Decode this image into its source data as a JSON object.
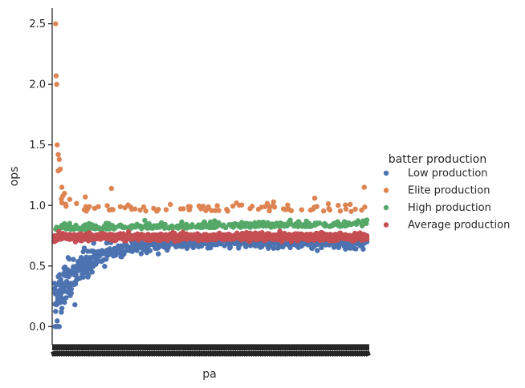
{
  "chart_data": {
    "type": "scatter",
    "title": "",
    "xlabel": "pa",
    "ylabel": "ops",
    "ylim": [
      -0.15,
      2.63
    ],
    "yticks": [
      "0.0",
      "0.5",
      "1.0",
      "1.5",
      "2.0",
      "2.5"
    ],
    "grid": false,
    "x_ticks_note": "dense overlapping categorical tick labels (unreadable)",
    "legend": {
      "title": "batter production",
      "placement": "right",
      "entries": [
        "Low production",
        "Elite production",
        "High production",
        "Average production"
      ]
    },
    "x_range": [
      1,
      600
    ],
    "series": [
      {
        "name": "Low production",
        "color": "#4c72b0",
        "trend": {
          "y_at_x1": 0.2,
          "y_at_x600": 0.7,
          "spread": 0.06
        },
        "points": [
          [
            2,
            0.0
          ],
          [
            4,
            0.0
          ],
          [
            6,
            0.0
          ],
          [
            8,
            0.0
          ],
          [
            10,
            0.0
          ],
          [
            15,
            0.15
          ],
          [
            20,
            0.2
          ],
          [
            30,
            0.3
          ],
          [
            40,
            0.18
          ],
          [
            50,
            0.4
          ],
          [
            60,
            0.5
          ],
          [
            80,
            0.55
          ],
          [
            100,
            0.6
          ],
          [
            150,
            0.62
          ],
          [
            200,
            0.6
          ],
          [
            300,
            0.65
          ],
          [
            400,
            0.68
          ],
          [
            500,
            0.67
          ],
          [
            600,
            0.7
          ]
        ]
      },
      {
        "name": "Elite production",
        "color": "#dd8452",
        "trend": {
          "y_at_x1": 1.2,
          "y_at_x600": 0.95,
          "spread": 0.08
        },
        "points": [
          [
            3,
            2.5
          ],
          [
            4,
            2.07
          ],
          [
            5,
            2.0
          ],
          [
            6,
            1.5
          ],
          [
            8,
            1.42
          ],
          [
            10,
            1.38
          ],
          [
            12,
            1.3
          ],
          [
            15,
            1.15
          ],
          [
            20,
            1.1
          ],
          [
            30,
            1.05
          ],
          [
            60,
            1.07
          ],
          [
            110,
            1.14
          ],
          [
            260,
            0.98
          ],
          [
            350,
            1.02
          ],
          [
            420,
            1.0
          ],
          [
            500,
            1.06
          ],
          [
            560,
            0.97
          ],
          [
            595,
            1.15
          ]
        ]
      },
      {
        "name": "High production",
        "color": "#55a868",
        "trend": {
          "y_at_x1": 0.82,
          "y_at_x600": 0.86,
          "spread": 0.04
        },
        "points": [
          [
            5,
            0.82
          ],
          [
            20,
            0.85
          ],
          [
            60,
            0.84
          ],
          [
            150,
            0.82
          ],
          [
            300,
            0.85
          ],
          [
            450,
            0.86
          ],
          [
            600,
            0.88
          ]
        ]
      },
      {
        "name": "Average production",
        "color": "#c44e52",
        "trend": {
          "y_at_x1": 0.74,
          "y_at_x600": 0.74,
          "spread": 0.03
        },
        "points": [
          [
            5,
            0.73
          ],
          [
            50,
            0.75
          ],
          [
            150,
            0.74
          ],
          [
            300,
            0.74
          ],
          [
            450,
            0.75
          ],
          [
            600,
            0.75
          ]
        ]
      }
    ]
  }
}
